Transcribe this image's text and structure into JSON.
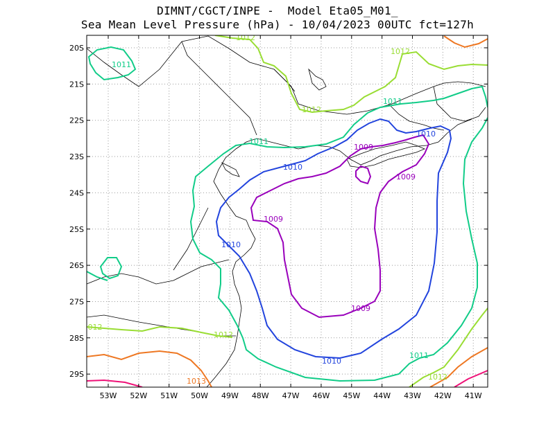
{
  "title_line1": "DIMNT/CGCT/INPE -  Model Eta05_M01_",
  "title_line2": "Sea Mean Level Pressure (hPa) - 10/04/2023 00UTC fct=127h",
  "lat_labels": [
    "20S",
    "21S",
    "22S",
    "23S",
    "24S",
    "25S",
    "26S",
    "27S",
    "28S",
    "29S"
  ],
  "lon_labels": [
    "53W",
    "52W",
    "51W",
    "50W",
    "49W",
    "48W",
    "47W",
    "46W",
    "45W",
    "44W",
    "43W",
    "42W",
    "41W"
  ],
  "colors": {
    "c1009": "#9900bb",
    "c1010": "#2244dd",
    "c1011": "#11cc88",
    "c1012": "#99dd33",
    "c1013": "#ee7722",
    "c1014": "#ee1177",
    "coast": "#000000",
    "grid": "#888888"
  },
  "contour_labels": {
    "c1009_a": "1009",
    "c1009_b": "1009",
    "c1009_c": "1009",
    "c1009_d": "1009",
    "c1010_a": "1010",
    "c1010_b": "1010",
    "c1010_c": "1010",
    "c1010_d": "1010",
    "c1011_a": "1011",
    "c1011_b": "1011",
    "c1011_c": "1011",
    "c1011_d": "1011",
    "c1012_a": "1012",
    "c1012_b": "1012",
    "c1012_c": "1012",
    "c1012_d": "012",
    "c1012_e": "1012",
    "c1012_f": "1012",
    "c1013_a": "1013"
  }
}
